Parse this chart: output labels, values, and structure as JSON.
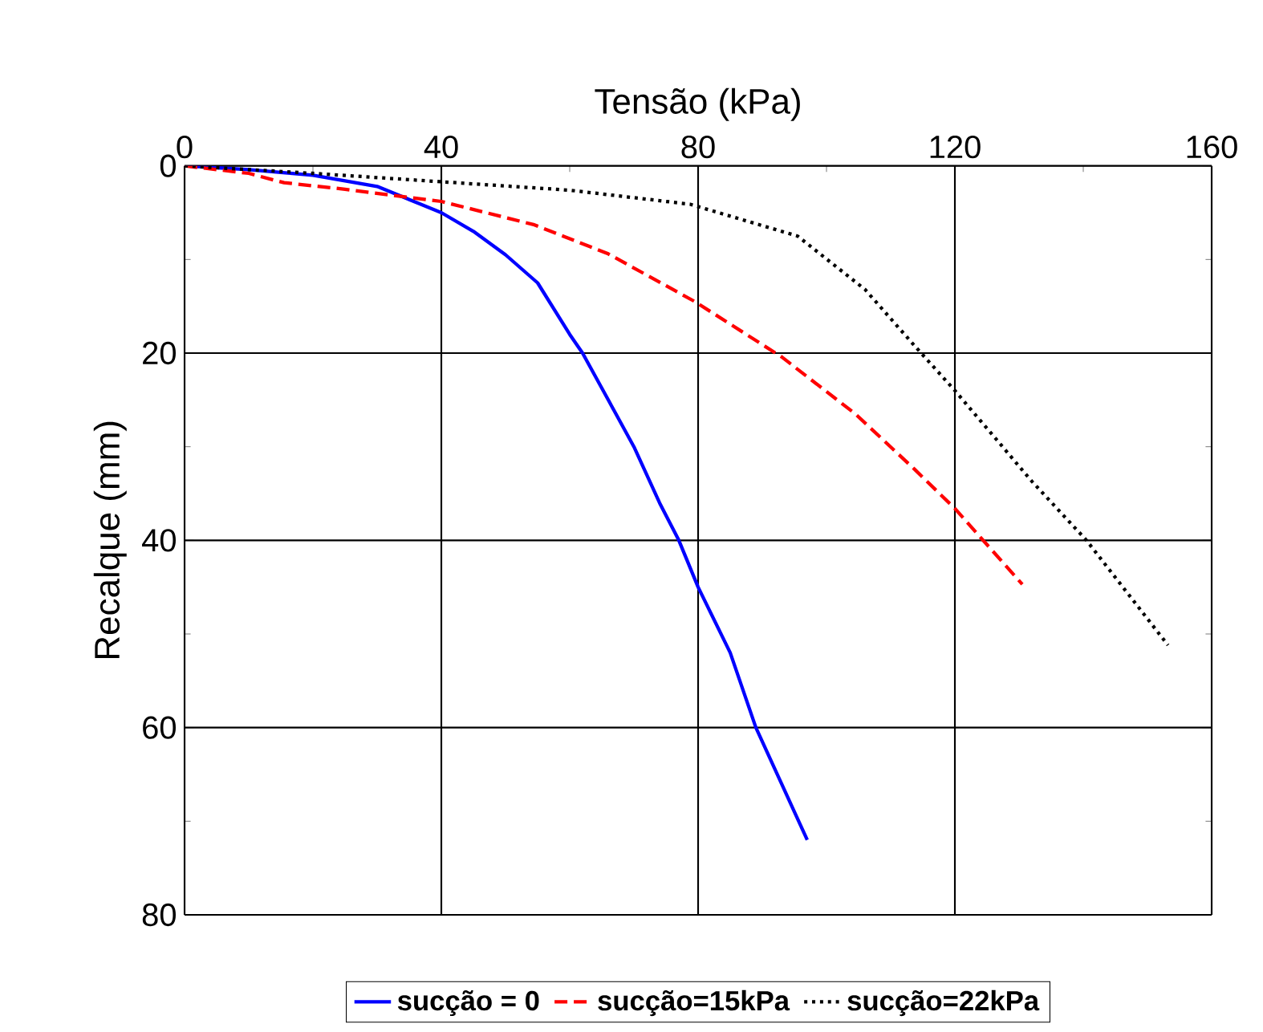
{
  "chart_data": {
    "type": "line",
    "xlabel": "Tensão (kPa)",
    "ylabel": "Recalque (mm)",
    "xlim": [
      0,
      160
    ],
    "xticks": [
      0,
      40,
      80,
      120,
      160
    ],
    "ylim": [
      80,
      0
    ],
    "yticks": [
      0,
      20,
      40,
      60,
      80
    ],
    "grid": true,
    "legend": "bottom",
    "marker": "none",
    "series": [
      {
        "name": "sucção = 0",
        "color": "#0000ff",
        "line_style": "solid",
        "x": [
          0,
          10,
          20,
          30,
          40,
          45,
          50,
          55,
          60,
          62,
          66,
          70,
          74,
          77,
          80,
          85,
          89,
          93,
          97
        ],
        "values": [
          0,
          0.4,
          1,
          2.2,
          5,
          7,
          9.5,
          12.5,
          18,
          20,
          25,
          30,
          36,
          40,
          45,
          52,
          60,
          66,
          72
        ]
      },
      {
        "name": "sucção=15kPa",
        "color": "#ff0000",
        "line_style": "dashed",
        "x": [
          0,
          10,
          15.5,
          25,
          40,
          54.5,
          66,
          79.5,
          93,
          104.5,
          113.7,
          120,
          130.5
        ],
        "values": [
          0,
          0.8,
          1.8,
          2.5,
          3.8,
          6.3,
          9.4,
          14.5,
          20.4,
          26.5,
          32.4,
          36.6,
          44.7
        ]
      },
      {
        "name": "sucção=22kPa",
        "color": "#000000",
        "line_style": "dotted",
        "x": [
          0,
          20,
          40,
          60,
          78.75,
          95.5,
          106,
          113.7,
          120,
          132,
          140.5,
          153.2
        ],
        "values": [
          0,
          0.8,
          1.7,
          2.6,
          4.1,
          7.5,
          13.2,
          19.2,
          24,
          33.7,
          40,
          51.2
        ]
      }
    ]
  }
}
